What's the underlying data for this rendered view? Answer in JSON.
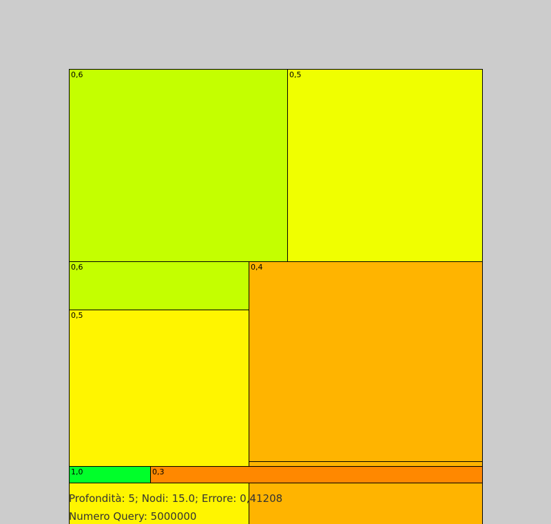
{
  "treemap": {
    "cells": [
      {
        "label": "0,6",
        "color": "#c4ff00"
      },
      {
        "label": "0,5",
        "color": "#f0ff00"
      },
      {
        "label": "0,6",
        "color": "#c4ff00"
      },
      {
        "label": "0,4",
        "color": "#ffb400"
      },
      {
        "label": "0,5",
        "color": "#fff500"
      },
      {
        "label": "",
        "color": "#ffb400"
      },
      {
        "label": "1,0",
        "color": "#00ff2a"
      },
      {
        "label": "0,3",
        "color": "#ff8800"
      }
    ]
  },
  "status": {
    "line1": "Profondità: 5; Nodi: 15.0; Errore: 0,41208",
    "line2": "Numero Query: 5000000"
  }
}
